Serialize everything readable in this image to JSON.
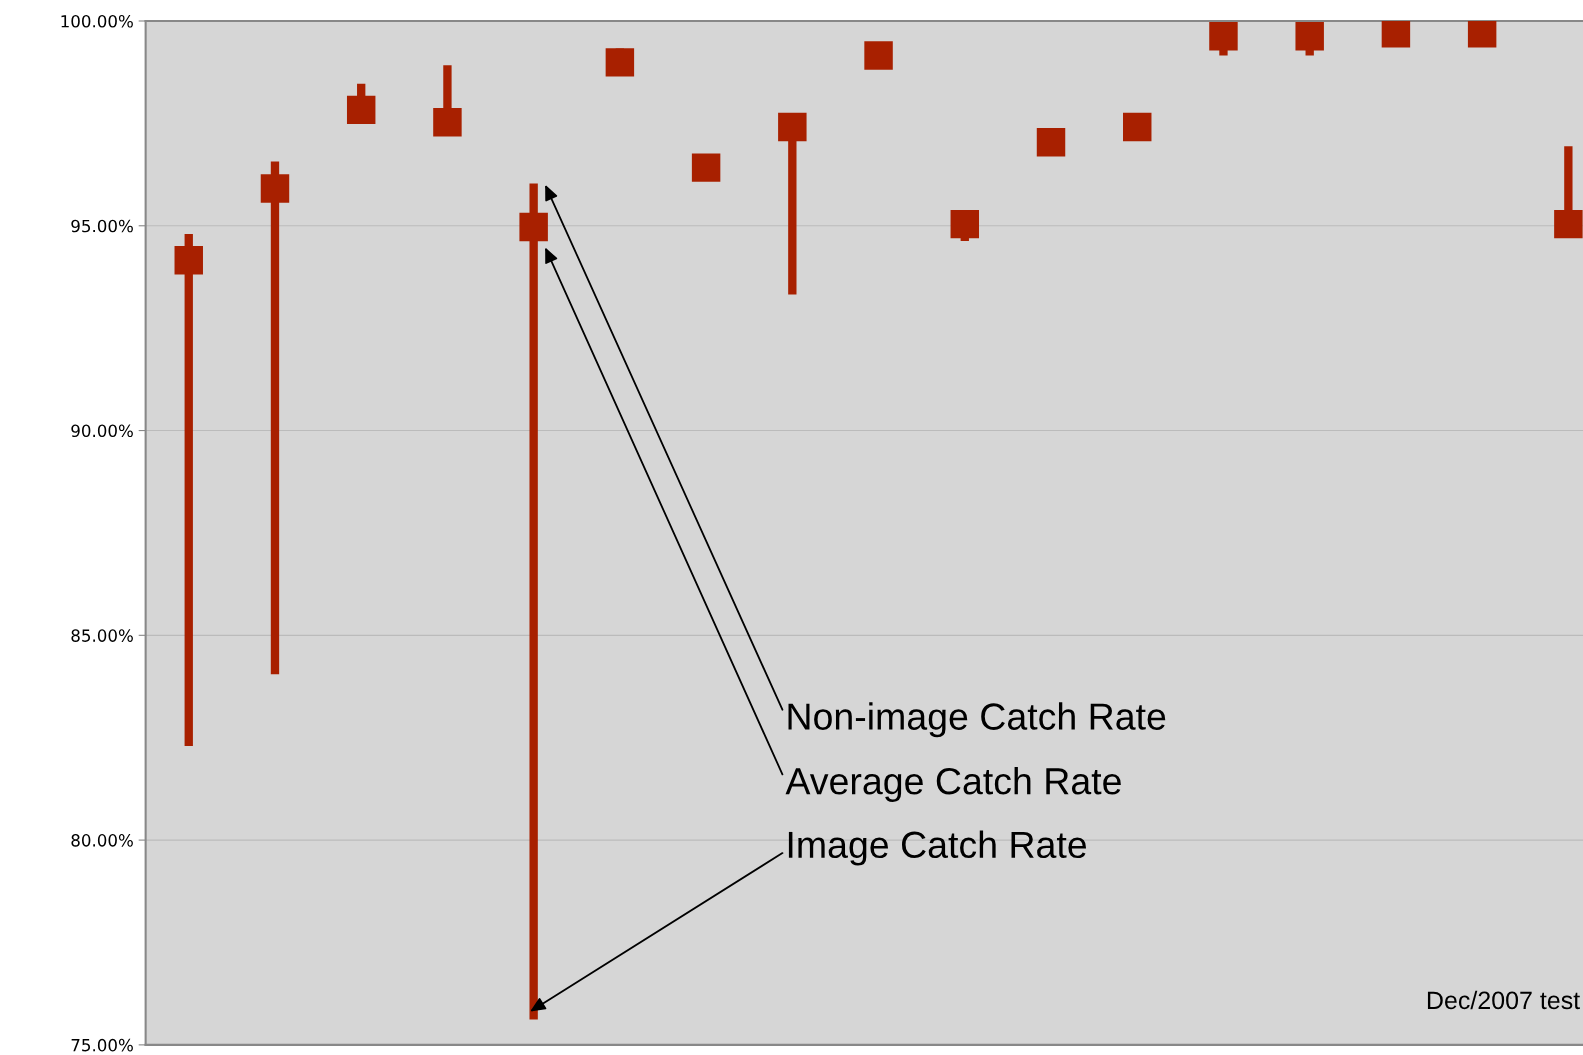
{
  "chart_data": {
    "type": "scatter",
    "categories": [
      null,
      null,
      null,
      null,
      null,
      null,
      null,
      null,
      null,
      null,
      null,
      null,
      null,
      null,
      null,
      null,
      null
    ],
    "series": [
      {
        "color": "#a82000",
        "marker": "square",
        "values": [
          94.16,
          95.91,
          97.83,
          97.53,
          94.97,
          98.99,
          96.42,
          97.41,
          99.16,
          95.04,
          97.04,
          97.41,
          99.63,
          99.63,
          99.7,
          99.7,
          95.04
        ],
        "errors": [
          [
            82.3,
            94.8
          ],
          [
            84.05,
            96.57
          ],
          [
            97.83,
            98.47
          ],
          [
            97.53,
            98.92
          ],
          [
            75.62,
            96.03
          ],
          [
            98.99,
            99.33
          ],
          null,
          [
            93.32,
            97.41
          ],
          null,
          [
            94.63,
            95.04
          ],
          [
            97.04,
            97.39
          ],
          null,
          [
            99.16,
            99.63
          ],
          [
            99.16,
            99.63
          ],
          [
            99.38,
            99.7
          ],
          [
            99.38,
            99.7
          ],
          [
            95.04,
            96.94
          ]
        ]
      }
    ],
    "ylim": [
      75,
      100
    ],
    "yticks": [
      {
        "value": 75,
        "label": "75.00%"
      },
      {
        "value": 80,
        "label": "80.00%"
      },
      {
        "value": 85,
        "label": "85.00%"
      },
      {
        "value": 90,
        "label": "90.00%"
      },
      {
        "value": 95,
        "label": "95.00%"
      },
      {
        "value": 100,
        "label": "100.00%"
      }
    ],
    "grid": "y",
    "annotations": [
      "Non-image Catch Rate",
      "Average Catch Rate",
      "Image Catch Rate",
      "Dec/2007 test"
    ]
  }
}
